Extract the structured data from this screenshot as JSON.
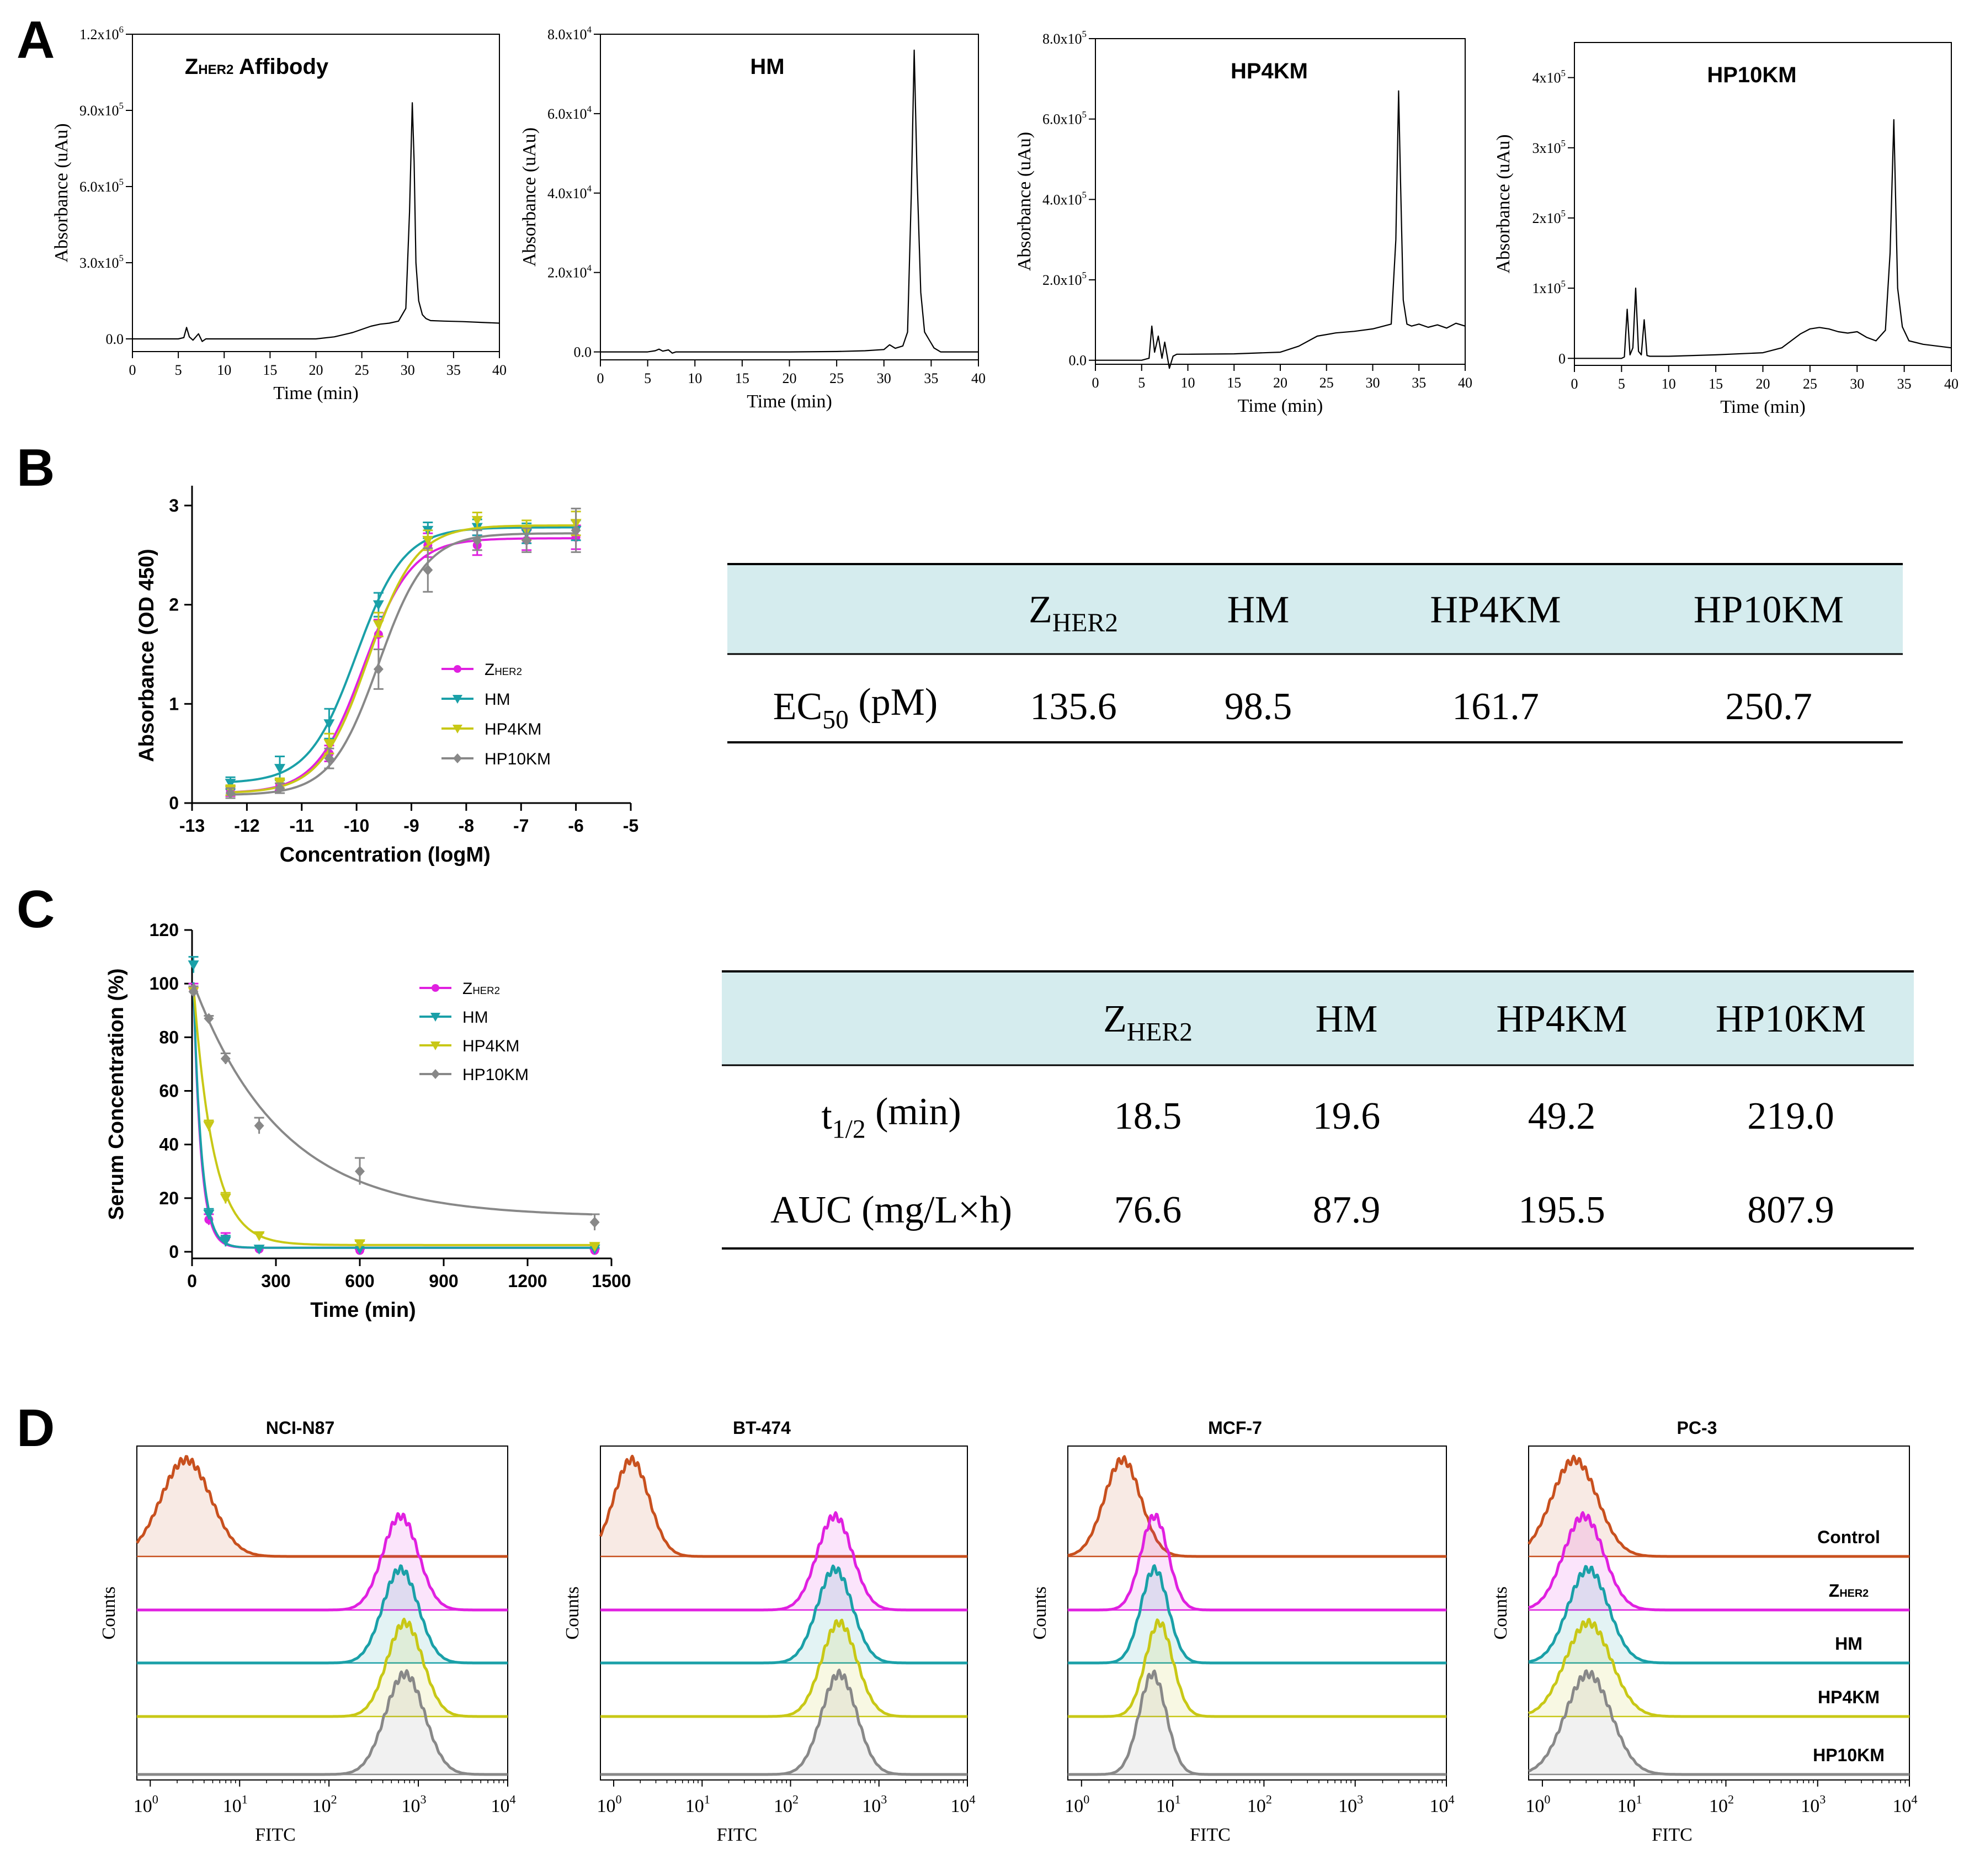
{
  "panels": {
    "A": "A",
    "B": "B",
    "C": "C",
    "D": "D"
  },
  "colors": {
    "zher2": "#e020e0",
    "hm": "#1aa0a8",
    "hp4km": "#c8c816",
    "hp10km": "#888888",
    "control": "#c8501e",
    "table_header": "#d5ecee"
  },
  "chart_data": [
    {
      "type": "line",
      "id": "A1",
      "title": "Z",
      "title_sub": "HER2",
      "title_rest": " Affibody",
      "xlabel": "Time (min)",
      "ylabel": "Absorbance (uAu)",
      "xlim": [
        0,
        40
      ],
      "ylim": [
        -50000,
        1200000
      ],
      "xticks": [
        "0",
        "5",
        "10",
        "15",
        "20",
        "25",
        "30",
        "35",
        "40"
      ],
      "yticks": [
        {
          "v": 0,
          "m": "0.0",
          "e": ""
        },
        {
          "v": 300000,
          "m": "3.0x10",
          "e": "5"
        },
        {
          "v": 600000,
          "m": "6.0x10",
          "e": "5"
        },
        {
          "v": 900000,
          "m": "9.0x10",
          "e": "5"
        },
        {
          "v": 1200000,
          "m": "1.2x10",
          "e": "6"
        }
      ],
      "x": [
        0,
        5,
        5.6,
        5.9,
        6.2,
        6.6,
        7.2,
        7.6,
        8,
        10,
        15,
        20,
        22,
        24,
        26,
        27,
        28,
        29,
        29.8,
        30.2,
        30.5,
        30.7,
        30.9,
        31.2,
        31.6,
        32,
        32.5,
        34,
        36,
        38,
        40
      ],
      "y": [
        0,
        0,
        5000,
        45000,
        8000,
        -5000,
        20000,
        -10000,
        0,
        0,
        0,
        0,
        8000,
        25000,
        50000,
        58000,
        62000,
        70000,
        120000,
        500000,
        930000,
        700000,
        300000,
        150000,
        95000,
        80000,
        72000,
        70000,
        68000,
        65000,
        62000
      ]
    },
    {
      "type": "line",
      "id": "A2",
      "title": "HM",
      "title_sub": "",
      "title_rest": "",
      "xlabel": "Time (min)",
      "ylabel": "Absorbance (uAu)",
      "xlim": [
        0,
        40
      ],
      "ylim": [
        -2000,
        80000
      ],
      "xticks": [
        "0",
        "5",
        "10",
        "15",
        "20",
        "25",
        "30",
        "35",
        "40"
      ],
      "yticks": [
        {
          "v": 0,
          "m": "0.0",
          "e": ""
        },
        {
          "v": 20000,
          "m": "2.0x10",
          "e": "4"
        },
        {
          "v": 40000,
          "m": "4.0x10",
          "e": "4"
        },
        {
          "v": 60000,
          "m": "6.0x10",
          "e": "4"
        },
        {
          "v": 80000,
          "m": "8.0x10",
          "e": "4"
        }
      ],
      "x": [
        0,
        5,
        5.8,
        6.2,
        6.6,
        7.2,
        7.6,
        8,
        10,
        15,
        20,
        25,
        28,
        30,
        30.6,
        31.2,
        32,
        32.5,
        32.9,
        33.2,
        33.5,
        33.9,
        34.3,
        34.8,
        35.3,
        36,
        38,
        40
      ],
      "y": [
        0,
        0,
        300,
        700,
        200,
        500,
        -300,
        0,
        0,
        0,
        0,
        100,
        300,
        600,
        1800,
        900,
        1500,
        5000,
        40000,
        76000,
        45000,
        15000,
        5000,
        3000,
        1000,
        0,
        0,
        0
      ]
    },
    {
      "type": "line",
      "id": "A3",
      "title": "HP4KM",
      "title_sub": "",
      "title_rest": "",
      "xlabel": "Time (min)",
      "ylabel": "Absorbance (uAu)",
      "xlim": [
        0,
        40
      ],
      "ylim": [
        -10000,
        800000
      ],
      "xticks": [
        "0",
        "5",
        "10",
        "15",
        "20",
        "25",
        "30",
        "35",
        "40"
      ],
      "yticks": [
        {
          "v": 0,
          "m": "0.0",
          "e": ""
        },
        {
          "v": 200000,
          "m": "2.0x10",
          "e": "5"
        },
        {
          "v": 400000,
          "m": "4.0x10",
          "e": "5"
        },
        {
          "v": 600000,
          "m": "6.0x10",
          "e": "5"
        },
        {
          "v": 800000,
          "m": "8.0x10",
          "e": "5"
        }
      ],
      "x": [
        0,
        5,
        5.8,
        6.1,
        6.4,
        6.8,
        7.2,
        7.5,
        8,
        8.4,
        8.8,
        10,
        15,
        20,
        22,
        24,
        26,
        28,
        30,
        32,
        32.5,
        32.8,
        33,
        33.3,
        33.7,
        34.2,
        35,
        36,
        37,
        38,
        39,
        40
      ],
      "y": [
        0,
        0,
        5000,
        85000,
        20000,
        60000,
        5000,
        45000,
        -20000,
        10000,
        15000,
        15000,
        16000,
        20000,
        35000,
        60000,
        68000,
        72000,
        78000,
        90000,
        300000,
        670000,
        450000,
        150000,
        90000,
        85000,
        90000,
        82000,
        88000,
        80000,
        92000,
        85000
      ]
    },
    {
      "type": "line",
      "id": "A4",
      "title": "HP10KM",
      "title_sub": "",
      "title_rest": "",
      "xlabel": "Time (min)",
      "ylabel": "Absorbance (uAu)",
      "xlim": [
        0,
        40
      ],
      "ylim": [
        -10000,
        450000
      ],
      "xticks": [
        "0",
        "5",
        "10",
        "15",
        "20",
        "25",
        "30",
        "35",
        "40"
      ],
      "yticks": [
        {
          "v": 0,
          "m": "0",
          "e": ""
        },
        {
          "v": 100000,
          "m": "1x10",
          "e": "5"
        },
        {
          "v": 200000,
          "m": "2x10",
          "e": "5"
        },
        {
          "v": 300000,
          "m": "3x10",
          "e": "5"
        },
        {
          "v": 400000,
          "m": "4x10",
          "e": "5"
        }
      ],
      "x": [
        0,
        5,
        5.3,
        5.6,
        5.9,
        6.2,
        6.5,
        6.8,
        7.1,
        7.4,
        7.7,
        8,
        10,
        15,
        20,
        22,
        24,
        25,
        26,
        27,
        28,
        29,
        30,
        31,
        32,
        33,
        33.5,
        33.9,
        34.3,
        34.8,
        35.5,
        37,
        40
      ],
      "y": [
        0,
        0,
        2000,
        70000,
        5000,
        15000,
        100000,
        10000,
        5000,
        55000,
        4000,
        3000,
        3000,
        5000,
        8000,
        15000,
        35000,
        42000,
        44000,
        42000,
        38000,
        36000,
        38000,
        30000,
        25000,
        40000,
        150000,
        340000,
        100000,
        45000,
        25000,
        20000,
        15000
      ]
    },
    {
      "type": "line",
      "id": "B",
      "xlabel": "Concentration (logM)",
      "ylabel": "Absorbance (OD 450)",
      "xlim": [
        -13,
        -5
      ],
      "ylim": [
        0,
        3
      ],
      "xticks": [
        "-13",
        "-12",
        "-11",
        "-10",
        "-9",
        "-8",
        "-7",
        "-6",
        "-5"
      ],
      "yticks": [
        "0",
        "1",
        "2",
        "3"
      ],
      "x": [
        -12.3,
        -11.4,
        -10.5,
        -9.6,
        -8.7,
        -7.8,
        -6.9,
        -6.0
      ],
      "series": [
        {
          "name": "Z",
          "sub": "HER2",
          "color_key": "zher2",
          "marker": "circle",
          "bottom": 0.1,
          "top": 2.67,
          "logEC50": -9.868,
          "values": [
            0.12,
            0.18,
            0.5,
            1.7,
            2.6,
            2.6,
            2.65,
            2.68
          ],
          "err": [
            0.05,
            0.05,
            0.08,
            0.15,
            0.12,
            0.1,
            0.1,
            0.12
          ]
        },
        {
          "name": "HM",
          "sub": "",
          "color_key": "hm",
          "marker": "tri-down",
          "bottom": 0.2,
          "top": 2.78,
          "logEC50": -10.007,
          "values": [
            0.2,
            0.35,
            0.8,
            2.0,
            2.75,
            2.78,
            2.72,
            2.75
          ],
          "err": [
            0.06,
            0.12,
            0.15,
            0.12,
            0.08,
            0.08,
            0.1,
            0.1
          ]
        },
        {
          "name": "HP4KM",
          "sub": "",
          "color_key": "hp4km",
          "marker": "tri-down",
          "bottom": 0.1,
          "top": 2.8,
          "logEC50": -9.791,
          "values": [
            0.13,
            0.2,
            0.6,
            1.8,
            2.65,
            2.85,
            2.75,
            2.82
          ],
          "err": [
            0.05,
            0.05,
            0.1,
            0.12,
            0.1,
            0.08,
            0.1,
            0.12
          ]
        },
        {
          "name": "HP10KM",
          "sub": "",
          "color_key": "hp10km",
          "marker": "diamond",
          "bottom": 0.08,
          "top": 2.72,
          "logEC50": -9.601,
          "values": [
            0.1,
            0.15,
            0.45,
            1.35,
            2.35,
            2.65,
            2.65,
            2.75
          ],
          "err": [
            0.05,
            0.05,
            0.1,
            0.2,
            0.22,
            0.1,
            0.12,
            0.22
          ]
        }
      ]
    },
    {
      "type": "line",
      "id": "C",
      "xlabel": "Time (min)",
      "ylabel": "Serum Concentration (%)",
      "xlim": [
        0,
        1500
      ],
      "ylim": [
        0,
        120
      ],
      "xticks": [
        "0",
        "300",
        "600",
        "900",
        "1200",
        "1500"
      ],
      "yticks": [
        "0",
        "20",
        "40",
        "60",
        "80",
        "100",
        "120"
      ],
      "x": [
        5,
        60,
        120,
        240,
        600,
        1440
      ],
      "series": [
        {
          "name": "Z",
          "sub": "HER2",
          "color_key": "zher2",
          "marker": "circle",
          "plateau": 1.5,
          "span": 98,
          "half_life": 18.5,
          "values": [
            98,
            12,
            5,
            1,
            0.5,
            0.5
          ],
          "err": [
            2,
            2,
            2,
            0.5,
            0.5,
            0.5
          ]
        },
        {
          "name": "HM",
          "sub": "",
          "color_key": "hm",
          "marker": "tri-down",
          "plateau": 1.5,
          "span": 99,
          "half_life": 19.6,
          "values": [
            107,
            14,
            4,
            1,
            1,
            1
          ],
          "err": [
            3,
            2,
            2,
            0.5,
            0.5,
            0.5
          ]
        },
        {
          "name": "HP4KM",
          "sub": "",
          "color_key": "hp4km",
          "marker": "tri-down",
          "plateau": 2.5,
          "span": 97,
          "half_life": 49.2,
          "values": [
            97,
            47,
            20,
            6,
            3,
            2
          ],
          "err": [
            2,
            2,
            2,
            1,
            1,
            1
          ]
        },
        {
          "name": "HP10KM",
          "sub": "",
          "color_key": "hp10km",
          "marker": "diamond",
          "plateau": 13,
          "span": 87,
          "half_life": 219.0,
          "values": [
            97,
            87,
            72,
            47,
            30,
            11
          ],
          "err": [
            2,
            1,
            2,
            3,
            5,
            3
          ]
        }
      ]
    },
    {
      "type": "histogram",
      "id": "D",
      "xlabel": "FITC",
      "ylabel": "Counts",
      "xtick_base": "10",
      "xtick_exps": [
        "0",
        "1",
        "2",
        "3",
        "4"
      ],
      "row_labels": [
        "Control",
        "Z",
        "HM",
        "HP4KM",
        "HP10KM"
      ],
      "row_label_sub": "HER2",
      "panels": [
        {
          "title": "NCI-N87",
          "peaks": [
            0.4,
            2.8,
            2.8,
            2.85,
            2.85
          ],
          "widths": [
            0.28,
            0.2,
            0.2,
            0.2,
            0.22
          ],
          "show_row_labels": false
        },
        {
          "title": "BT-474",
          "peaks": [
            0.2,
            2.5,
            2.5,
            2.55,
            2.55
          ],
          "widths": [
            0.2,
            0.2,
            0.2,
            0.2,
            0.2
          ],
          "show_row_labels": false
        },
        {
          "title": "MCF-7",
          "peaks": [
            0.45,
            0.8,
            0.8,
            0.85,
            0.78
          ],
          "widths": [
            0.2,
            0.15,
            0.15,
            0.15,
            0.15
          ],
          "show_row_labels": false
        },
        {
          "title": "PC-3",
          "peaks": [
            0.35,
            0.45,
            0.5,
            0.5,
            0.5
          ],
          "widths": [
            0.25,
            0.22,
            0.22,
            0.25,
            0.25
          ],
          "show_row_labels": true
        }
      ]
    }
  ],
  "table_B": {
    "headers": [
      {
        "main": "",
        "sub": ""
      },
      {
        "main": "Z",
        "sub": "HER2"
      },
      {
        "main": "HM",
        "sub": ""
      },
      {
        "main": "HP4KM",
        "sub": ""
      },
      {
        "main": "HP10KM",
        "sub": ""
      }
    ],
    "rows": [
      {
        "label_main": "EC",
        "label_sub": "50",
        "label_rest": " (pM)",
        "cells": [
          "135.6",
          "98.5",
          "161.7",
          "250.7"
        ]
      }
    ]
  },
  "table_C": {
    "headers": [
      {
        "main": "",
        "sub": ""
      },
      {
        "main": "Z",
        "sub": "HER2"
      },
      {
        "main": "HM",
        "sub": ""
      },
      {
        "main": "HP4KM",
        "sub": ""
      },
      {
        "main": "HP10KM",
        "sub": ""
      }
    ],
    "rows": [
      {
        "label_main": "t",
        "label_sub": "1/2",
        "label_rest": " (min)",
        "cells": [
          "18.5",
          "19.6",
          "49.2",
          "219.0"
        ]
      },
      {
        "label_main": "AUC (mg/L",
        "label_sub": "",
        "label_rest": "×h)",
        "cells": [
          "76.6",
          "87.9",
          "195.5",
          "807.9"
        ]
      }
    ]
  }
}
